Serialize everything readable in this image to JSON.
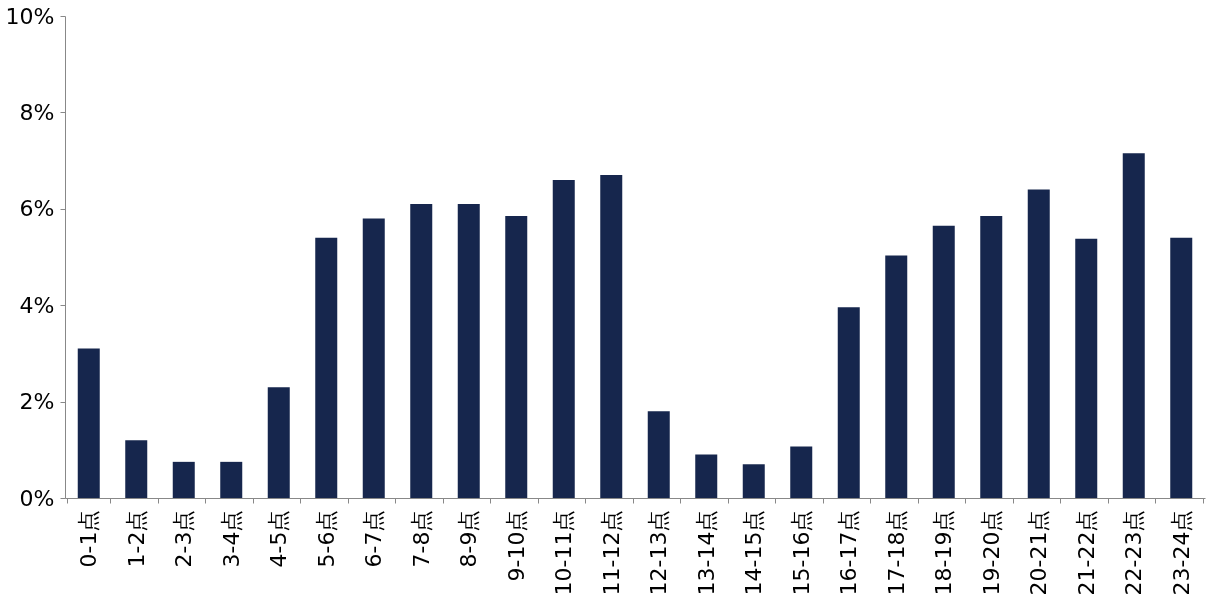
{
  "chart_data": {
    "type": "bar",
    "categories": [
      "0-1点",
      "1-2点",
      "2-3点",
      "3-4点",
      "4-5点",
      "5-6点",
      "6-7点",
      "7-8点",
      "8-9点",
      "9-10点",
      "10-11点",
      "11-12点",
      "12-13点",
      "13-14点",
      "14-15点",
      "15-16点",
      "16-17点",
      "17-18点",
      "18-19点",
      "19-20点",
      "20-21点",
      "21-22点",
      "22-23点",
      "23-24点"
    ],
    "values": [
      3.1,
      1.2,
      0.75,
      0.75,
      2.3,
      5.4,
      5.8,
      6.1,
      6.1,
      5.85,
      6.6,
      6.7,
      1.8,
      0.9,
      0.7,
      1.07,
      3.96,
      5.03,
      5.65,
      5.85,
      6.4,
      5.38,
      7.15,
      5.4
    ],
    "color": "#16264d",
    "ylim": [
      0,
      10
    ],
    "yticks": [
      {
        "value": 0,
        "label": "0%"
      },
      {
        "value": 2,
        "label": "2%"
      },
      {
        "value": 4,
        "label": "4%"
      },
      {
        "value": 6,
        "label": "6%"
      },
      {
        "value": 8,
        "label": "8%"
      },
      {
        "value": 10,
        "label": "10%"
      }
    ],
    "grid": false
  }
}
